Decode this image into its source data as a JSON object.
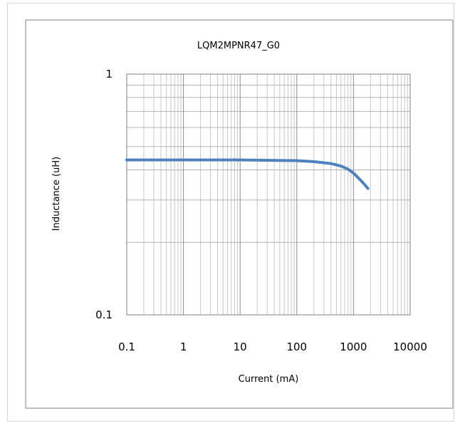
{
  "chart_data": {
    "type": "line",
    "title": "LQM2MPNR47_G0",
    "xlabel": "Current (mA)",
    "ylabel": "Inductance (uH)",
    "xscale": "log",
    "yscale": "log",
    "xlim": [
      0.1,
      10000
    ],
    "ylim": [
      0.1,
      1
    ],
    "xticks": [
      "0.1",
      "1",
      "10",
      "100",
      "1000",
      "10000"
    ],
    "yticks": [
      "0.1",
      "1"
    ],
    "grid": true,
    "legend": "none",
    "series": [
      {
        "color": "#4f81bd",
        "x": [
          0.1,
          1,
          10,
          100,
          200,
          400,
          600,
          800,
          1000,
          1200,
          1500,
          1800
        ],
        "y": [
          0.44,
          0.44,
          0.44,
          0.437,
          0.433,
          0.425,
          0.415,
          0.403,
          0.388,
          0.372,
          0.352,
          0.335
        ]
      }
    ]
  }
}
